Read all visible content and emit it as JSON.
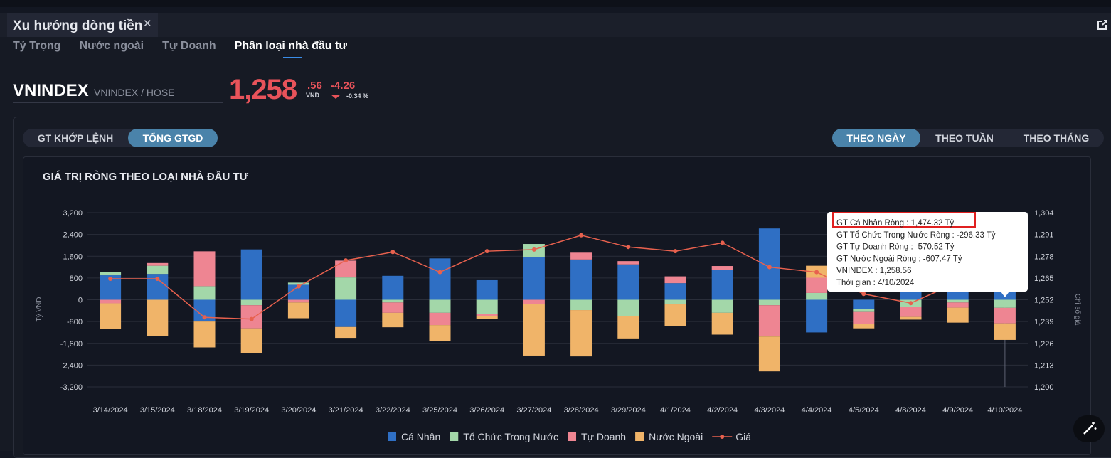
{
  "window": {
    "title": "Xu hướng dòng tiền",
    "close_icon": "close-icon",
    "popout_icon": "external-link-icon"
  },
  "subtabs": [
    {
      "label": "Tỷ Trọng",
      "active": false
    },
    {
      "label": "Nước ngoài",
      "active": false
    },
    {
      "label": "Tự Doanh",
      "active": false
    },
    {
      "label": "Phân loại nhà đầu tư",
      "active": true
    }
  ],
  "ticker": {
    "symbol": "VNINDEX",
    "exchange": "VNINDEX / HOSE",
    "price_int": "1,258",
    "price_dec": ".56",
    "unit": "VND",
    "change": "-4.26",
    "change_pct": "-0.34 %",
    "color_down": "#e8535a"
  },
  "value_toggle": [
    {
      "label": "GT KHỚP LỆNH",
      "active": false
    },
    {
      "label": "TỔNG GTGD",
      "active": true
    }
  ],
  "period_toggle": [
    {
      "label": "THEO NGÀY",
      "active": true
    },
    {
      "label": "THEO TUẦN",
      "active": false
    },
    {
      "label": "THEO THÁNG",
      "active": false
    }
  ],
  "chart_data": {
    "type": "bar",
    "stacked": true,
    "title": "GIÁ TRỊ RÒNG THEO LOẠI NHÀ ĐẦU TƯ",
    "ylabel": "Tỷ VND",
    "y2label": "Chỉ số giá",
    "ylim": [
      -3200,
      3200
    ],
    "yticks": [
      "3,200",
      "2,400",
      "1,600",
      "800",
      "0",
      "-800",
      "-1,600",
      "-2,400",
      "-3,200"
    ],
    "y2lim": [
      1200,
      1304
    ],
    "y2ticks": [
      "1,304",
      "1,291",
      "1,278",
      "1,265",
      "1,252",
      "1,239",
      "1,226",
      "1,213",
      "1,200"
    ],
    "grid": true,
    "legend_position": "bottom",
    "categories": [
      "3/14/2024",
      "3/15/2024",
      "3/18/2024",
      "3/19/2024",
      "3/20/2024",
      "3/21/2024",
      "3/22/2024",
      "3/25/2024",
      "3/26/2024",
      "3/27/2024",
      "3/28/2024",
      "3/29/2024",
      "4/1/2024",
      "4/2/2024",
      "4/3/2024",
      "4/4/2024",
      "4/5/2024",
      "4/8/2024",
      "4/9/2024",
      "4/10/2024"
    ],
    "series": [
      {
        "name": "Cá Nhân",
        "color": "#2f6fc4",
        "values": [
          900,
          950,
          -800,
          1850,
          550,
          -1000,
          880,
          1520,
          720,
          1580,
          1480,
          1300,
          610,
          1100,
          2620,
          -1200,
          -350,
          380,
          650,
          1474.32
        ]
      },
      {
        "name": "Tổ Chức Trong Nước",
        "color": "#a3d7a9",
        "values": [
          130,
          300,
          500,
          -200,
          80,
          820,
          -100,
          -480,
          -520,
          470,
          -380,
          -600,
          -170,
          -480,
          -200,
          250,
          -100,
          -270,
          -100,
          -296.33
        ]
      },
      {
        "name": "Tự Doanh",
        "color": "#ee8592",
        "values": [
          -130,
          100,
          1280,
          -850,
          -100,
          620,
          -380,
          -450,
          -80,
          -150,
          250,
          120,
          250,
          140,
          -1150,
          560,
          -450,
          -360,
          -190,
          -570.52
        ]
      },
      {
        "name": "Nước Ngoài",
        "color": "#f0b469",
        "values": [
          -930,
          -1320,
          -950,
          -900,
          -580,
          -400,
          -530,
          -580,
          -100,
          -1900,
          -1700,
          -820,
          -790,
          -800,
          -1280,
          440,
          -150,
          -100,
          -550,
          -607.47
        ]
      },
      {
        "name": "Giá",
        "type": "line",
        "color": "#e8614e",
        "values": [
          1264.5,
          1264.5,
          1241.5,
          1240.5,
          1260,
          1275.5,
          1280.5,
          1268.5,
          1281,
          1282,
          1290.5,
          1283.5,
          1281,
          1286,
          1271.5,
          1268.5,
          1255.5,
          1250,
          1262.5,
          1258.56
        ]
      }
    ],
    "tooltip": {
      "index": 19,
      "lines": [
        "GT Cá Nhân Ròng : 1,474.32 Tỷ",
        "GT Tổ Chức Trong Nước Ròng : -296.33 Tỷ",
        "GT Tự Doanh Ròng : -570.52 Tỷ",
        "GT Nước Ngoài Ròng : -607.47 Tỷ",
        "VNINDEX : 1,258.56",
        "Thời gian : 4/10/2024"
      ]
    }
  }
}
